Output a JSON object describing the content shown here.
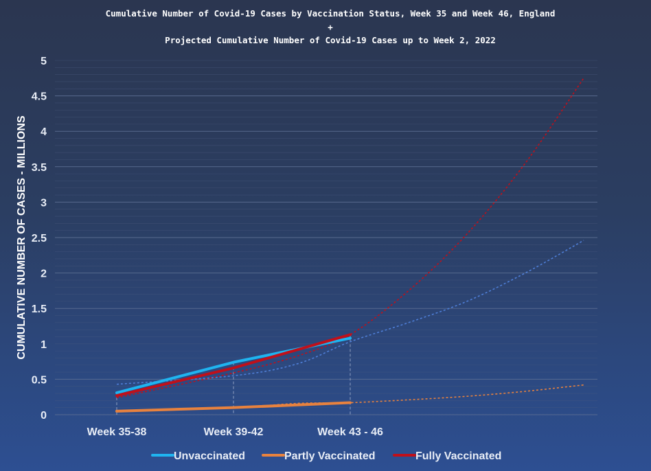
{
  "chart_data": {
    "type": "line",
    "title_lines": [
      "Cumulative Number of Covid-19 Cases by Vaccination Status, Week 35 and Week 46, England",
      "+",
      "Projected Cumulative Number of Covid-19 Cases up to Week 2, 2022"
    ],
    "xlabel": "",
    "ylabel": "CUMULATIVE NUMBER OF CASES - MILLIONS",
    "categories": [
      "Week 35-38",
      "Week 39-42",
      "Week 43 - 46"
    ],
    "yticks": [
      "0",
      "0.5",
      "1",
      "1.5",
      "2",
      "2.5",
      "3",
      "3.5",
      "4",
      "4.5",
      "5"
    ],
    "ylim": [
      0,
      5
    ],
    "grid": true,
    "legend_position": "bottom",
    "series": [
      {
        "name": "Unvaccinated",
        "color": "#1fb4f0",
        "values": [
          0.31,
          0.74,
          1.08
        ],
        "projection": [
          0.43,
          0.55,
          0.72,
          1.03,
          1.3,
          1.6,
          2.0,
          2.46
        ]
      },
      {
        "name": "Partly Vaccinated",
        "color": "#e8823e",
        "values": [
          0.05,
          0.1,
          0.17
        ],
        "projection": [
          0.05,
          0.1,
          0.16,
          0.17,
          0.21,
          0.26,
          0.33,
          0.42
        ]
      },
      {
        "name": "Fully Vaccinated",
        "color": "#c0101a",
        "values": [
          0.27,
          0.66,
          1.13
        ],
        "projection": [
          0.24,
          0.59,
          0.83,
          1.13,
          1.75,
          2.55,
          3.55,
          4.75
        ]
      }
    ],
    "projection_x": [
      0,
      1,
      1.55,
      2,
      2.5,
      3,
      3.5,
      4
    ]
  }
}
